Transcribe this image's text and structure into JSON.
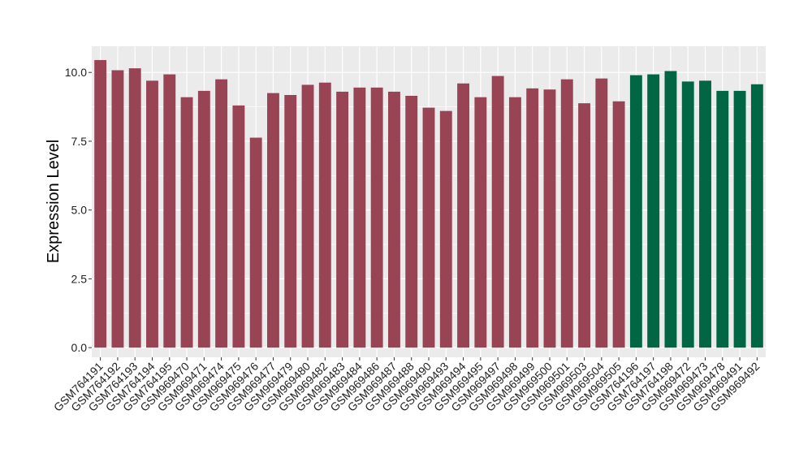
{
  "chart_data": {
    "type": "bar",
    "title": "",
    "xlabel": "",
    "ylabel": "Expression Level",
    "ylim": [
      -0.35,
      10.95
    ],
    "yticks": [
      0.0,
      2.5,
      5.0,
      7.5,
      10.0
    ],
    "ytick_labels": [
      "0.0",
      "2.5",
      "5.0",
      "7.5",
      "10.0"
    ],
    "grid": true,
    "legend": "none",
    "colors": {
      "panel_background": "#ebebeb",
      "grid": "#ffffff",
      "group_1": "#994455",
      "group_2": "#006644",
      "axis_text": "#222222"
    },
    "categories": [
      "GSM764191",
      "GSM764192",
      "GSM764193",
      "GSM764194",
      "GSM764195",
      "GSM969470",
      "GSM969471",
      "GSM969474",
      "GSM969475",
      "GSM969476",
      "GSM969477",
      "GSM969479",
      "GSM969480",
      "GSM969482",
      "GSM969483",
      "GSM969484",
      "GSM969486",
      "GSM969487",
      "GSM969488",
      "GSM969490",
      "GSM969493",
      "GSM969494",
      "GSM969495",
      "GSM969497",
      "GSM969498",
      "GSM969499",
      "GSM969500",
      "GSM969501",
      "GSM969503",
      "GSM969504",
      "GSM969505",
      "GSM764196",
      "GSM764197",
      "GSM764198",
      "GSM969472",
      "GSM969473",
      "GSM969478",
      "GSM969491",
      "GSM969492"
    ],
    "values": [
      10.45,
      10.08,
      10.15,
      9.7,
      9.93,
      9.1,
      9.33,
      9.75,
      8.8,
      7.63,
      9.25,
      9.18,
      9.55,
      9.63,
      9.3,
      9.45,
      9.45,
      9.3,
      9.15,
      8.72,
      8.6,
      9.6,
      9.1,
      9.87,
      9.1,
      9.42,
      9.38,
      9.75,
      8.88,
      9.78,
      8.95,
      9.9,
      9.93,
      10.05,
      9.67,
      9.7,
      9.33,
      9.33,
      9.57
    ],
    "groups": [
      1,
      1,
      1,
      1,
      1,
      1,
      1,
      1,
      1,
      1,
      1,
      1,
      1,
      1,
      1,
      1,
      1,
      1,
      1,
      1,
      1,
      1,
      1,
      1,
      1,
      1,
      1,
      1,
      1,
      1,
      1,
      2,
      2,
      2,
      2,
      2,
      2,
      2,
      2
    ]
  }
}
